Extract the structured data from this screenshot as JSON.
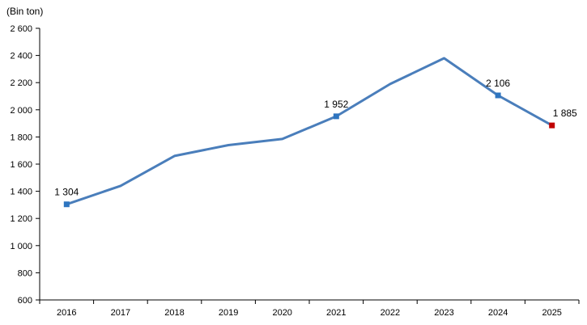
{
  "chart_data": {
    "type": "line",
    "unit_label": "(Bin ton)",
    "categories": [
      "2016",
      "2017",
      "2018",
      "2019",
      "2020",
      "2021",
      "2022",
      "2023",
      "2024",
      "2025"
    ],
    "values": [
      1304,
      1440,
      1660,
      1740,
      1785,
      1952,
      2190,
      2380,
      2106,
      1885
    ],
    "ylim": [
      600,
      2600
    ],
    "y_ticks": [
      600,
      800,
      1000,
      1200,
      1400,
      1600,
      1800,
      2000,
      2200,
      2400,
      2600
    ],
    "y_tick_labels": [
      "600",
      "800",
      "1 000",
      "1 200",
      "1 400",
      "1 600",
      "1 800",
      "2 000",
      "2 200",
      "2 400",
      "2 600"
    ],
    "grid": false,
    "line_color": "#4a7ebb",
    "marker_color": "#2e75c0",
    "highlight_marker_color": "#c00000",
    "data_labels": [
      {
        "category": "2016",
        "text": "1 304"
      },
      {
        "category": "2021",
        "text": "1 952"
      },
      {
        "category": "2024",
        "text": "2 106"
      },
      {
        "category": "2025",
        "text": "1 885",
        "highlight": true
      }
    ]
  }
}
